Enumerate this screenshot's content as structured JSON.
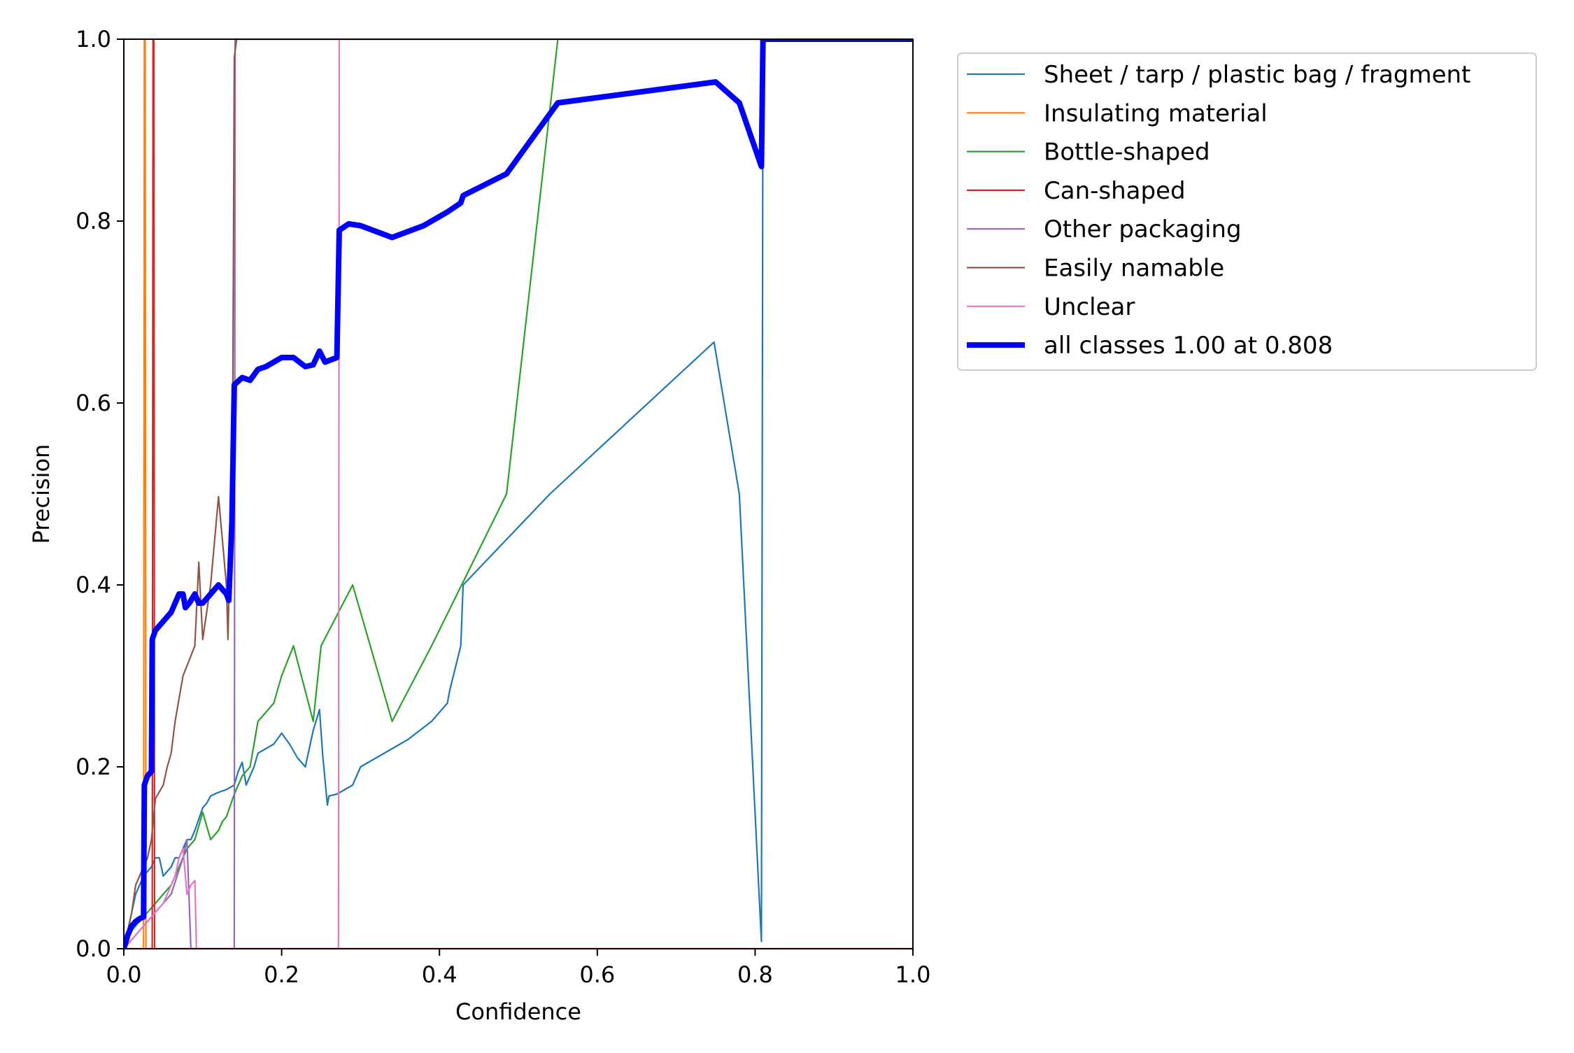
{
  "chart_data": {
    "type": "line",
    "title": "",
    "xlabel": "Confidence",
    "ylabel": "Precision",
    "xlim": [
      0,
      1
    ],
    "ylim": [
      0,
      1
    ],
    "xticks": [
      "0.0",
      "0.2",
      "0.4",
      "0.6",
      "0.8",
      "1.0"
    ],
    "yticks": [
      "0.0",
      "0.2",
      "0.4",
      "0.6",
      "0.8",
      "1.0"
    ],
    "grid": false,
    "legend_position": "outside-upper-right",
    "series": [
      {
        "name": "Sheet / tarp / plastic bag / fragment",
        "color": "#1f77b4",
        "bold": false,
        "points": [
          [
            0.0,
            0.0
          ],
          [
            0.005,
            0.02
          ],
          [
            0.01,
            0.04
          ],
          [
            0.015,
            0.06
          ],
          [
            0.02,
            0.07
          ],
          [
            0.025,
            0.08
          ],
          [
            0.03,
            0.085
          ],
          [
            0.035,
            0.09
          ],
          [
            0.04,
            0.1
          ],
          [
            0.045,
            0.1
          ],
          [
            0.05,
            0.08
          ],
          [
            0.055,
            0.085
          ],
          [
            0.06,
            0.09
          ],
          [
            0.065,
            0.1
          ],
          [
            0.07,
            0.1
          ],
          [
            0.075,
            0.11
          ],
          [
            0.08,
            0.12
          ],
          [
            0.085,
            0.12
          ],
          [
            0.09,
            0.13
          ],
          [
            0.1,
            0.155
          ],
          [
            0.105,
            0.16
          ],
          [
            0.11,
            0.168
          ],
          [
            0.12,
            0.172
          ],
          [
            0.13,
            0.175
          ],
          [
            0.14,
            0.18
          ],
          [
            0.145,
            0.195
          ],
          [
            0.15,
            0.205
          ],
          [
            0.155,
            0.18
          ],
          [
            0.16,
            0.19
          ],
          [
            0.165,
            0.2
          ],
          [
            0.17,
            0.215
          ],
          [
            0.18,
            0.22
          ],
          [
            0.19,
            0.225
          ],
          [
            0.2,
            0.237
          ],
          [
            0.21,
            0.225
          ],
          [
            0.22,
            0.21
          ],
          [
            0.23,
            0.2
          ],
          [
            0.24,
            0.24
          ],
          [
            0.248,
            0.263
          ],
          [
            0.252,
            0.213
          ],
          [
            0.258,
            0.158
          ],
          [
            0.26,
            0.168
          ],
          [
            0.27,
            0.17
          ],
          [
            0.29,
            0.18
          ],
          [
            0.3,
            0.2
          ],
          [
            0.33,
            0.215
          ],
          [
            0.36,
            0.23
          ],
          [
            0.39,
            0.25
          ],
          [
            0.41,
            0.27
          ],
          [
            0.413,
            0.284
          ],
          [
            0.427,
            0.333
          ],
          [
            0.43,
            0.4
          ],
          [
            0.54,
            0.5
          ],
          [
            0.748,
            0.667
          ],
          [
            0.78,
            0.5
          ],
          [
            0.808,
            0.008
          ],
          [
            0.81,
            1.0
          ],
          [
            1.0,
            1.0
          ]
        ]
      },
      {
        "name": "Insulating material",
        "color": "#ff7f0e",
        "bold": false,
        "points": [
          [
            0.0,
            0.0
          ],
          [
            0.025,
            0.0
          ],
          [
            0.026,
            1.0
          ],
          [
            0.027,
            1.0
          ],
          [
            0.028,
            0.0
          ],
          [
            1.0,
            0.0
          ]
        ]
      },
      {
        "name": "Bottle-shaped",
        "color": "#2ca02c",
        "bold": false,
        "points": [
          [
            0.0,
            0.0
          ],
          [
            0.01,
            0.02
          ],
          [
            0.02,
            0.03
          ],
          [
            0.03,
            0.04
          ],
          [
            0.04,
            0.05
          ],
          [
            0.05,
            0.06
          ],
          [
            0.06,
            0.07
          ],
          [
            0.07,
            0.09
          ],
          [
            0.08,
            0.11
          ],
          [
            0.09,
            0.12
          ],
          [
            0.1,
            0.15
          ],
          [
            0.11,
            0.12
          ],
          [
            0.12,
            0.13
          ],
          [
            0.125,
            0.14
          ],
          [
            0.13,
            0.145
          ],
          [
            0.14,
            0.17
          ],
          [
            0.15,
            0.19
          ],
          [
            0.16,
            0.2
          ],
          [
            0.17,
            0.25
          ],
          [
            0.18,
            0.26
          ],
          [
            0.19,
            0.27
          ],
          [
            0.2,
            0.3
          ],
          [
            0.215,
            0.333
          ],
          [
            0.225,
            0.3
          ],
          [
            0.24,
            0.25
          ],
          [
            0.25,
            0.333
          ],
          [
            0.29,
            0.4
          ],
          [
            0.34,
            0.25
          ],
          [
            0.39,
            0.333
          ],
          [
            0.485,
            0.5
          ],
          [
            0.55,
            1.0
          ],
          [
            1.0,
            1.0
          ]
        ]
      },
      {
        "name": "Can-shaped",
        "color": "#d62728",
        "bold": false,
        "points": [
          [
            0.0,
            0.0
          ],
          [
            0.036,
            0.0
          ],
          [
            0.037,
            1.0
          ],
          [
            0.038,
            1.0
          ],
          [
            0.039,
            0.0
          ],
          [
            1.0,
            0.0
          ]
        ]
      },
      {
        "name": "Other packaging",
        "color": "#9467bd",
        "bold": false,
        "points": [
          [
            0.0,
            0.0
          ],
          [
            0.02,
            0.02
          ],
          [
            0.04,
            0.04
          ],
          [
            0.06,
            0.06
          ],
          [
            0.075,
            0.1
          ],
          [
            0.08,
            0.12
          ],
          [
            0.085,
            0.0
          ],
          [
            0.14,
            0.0
          ],
          [
            0.141,
            1.0
          ],
          [
            1.0,
            1.0
          ]
        ]
      },
      {
        "name": "Easily namable",
        "color": "#8c564b",
        "bold": false,
        "points": [
          [
            0.0,
            0.0
          ],
          [
            0.01,
            0.04
          ],
          [
            0.015,
            0.07
          ],
          [
            0.02,
            0.08
          ],
          [
            0.03,
            0.1
          ],
          [
            0.035,
            0.12
          ],
          [
            0.04,
            0.165
          ],
          [
            0.05,
            0.18
          ],
          [
            0.055,
            0.2
          ],
          [
            0.06,
            0.215
          ],
          [
            0.065,
            0.25
          ],
          [
            0.075,
            0.3
          ],
          [
            0.09,
            0.333
          ],
          [
            0.095,
            0.425
          ],
          [
            0.1,
            0.34
          ],
          [
            0.11,
            0.4
          ],
          [
            0.12,
            0.497
          ],
          [
            0.13,
            0.4
          ],
          [
            0.132,
            0.34
          ],
          [
            0.138,
            0.58
          ],
          [
            0.14,
            0.98
          ],
          [
            0.143,
            1.0
          ],
          [
            1.0,
            1.0
          ]
        ]
      },
      {
        "name": "Unclear",
        "color": "#e377c2",
        "bold": false,
        "points": [
          [
            0.0,
            0.0
          ],
          [
            0.02,
            0.02
          ],
          [
            0.03,
            0.03
          ],
          [
            0.04,
            0.04
          ],
          [
            0.05,
            0.05
          ],
          [
            0.06,
            0.07
          ],
          [
            0.065,
            0.08
          ],
          [
            0.07,
            0.1
          ],
          [
            0.075,
            0.11
          ],
          [
            0.08,
            0.06
          ],
          [
            0.085,
            0.07
          ],
          [
            0.09,
            0.075
          ],
          [
            0.092,
            0.0
          ],
          [
            0.272,
            0.0
          ],
          [
            0.273,
            1.0
          ],
          [
            1.0,
            1.0
          ]
        ]
      },
      {
        "name": "all classes 1.00 at 0.808",
        "color": "#0000ff",
        "bold": true,
        "points": [
          [
            0.0,
            0.0
          ],
          [
            0.005,
            0.015
          ],
          [
            0.01,
            0.025
          ],
          [
            0.015,
            0.03
          ],
          [
            0.02,
            0.033
          ],
          [
            0.025,
            0.035
          ],
          [
            0.026,
            0.18
          ],
          [
            0.03,
            0.19
          ],
          [
            0.035,
            0.195
          ],
          [
            0.036,
            0.34
          ],
          [
            0.04,
            0.35
          ],
          [
            0.045,
            0.355
          ],
          [
            0.05,
            0.36
          ],
          [
            0.06,
            0.37
          ],
          [
            0.065,
            0.38
          ],
          [
            0.07,
            0.39
          ],
          [
            0.075,
            0.39
          ],
          [
            0.078,
            0.375
          ],
          [
            0.083,
            0.38
          ],
          [
            0.09,
            0.39
          ],
          [
            0.095,
            0.38
          ],
          [
            0.1,
            0.38
          ],
          [
            0.11,
            0.39
          ],
          [
            0.12,
            0.4
          ],
          [
            0.13,
            0.39
          ],
          [
            0.133,
            0.383
          ],
          [
            0.137,
            0.47
          ],
          [
            0.14,
            0.62
          ],
          [
            0.15,
            0.628
          ],
          [
            0.16,
            0.625
          ],
          [
            0.17,
            0.637
          ],
          [
            0.18,
            0.64
          ],
          [
            0.19,
            0.645
          ],
          [
            0.2,
            0.65
          ],
          [
            0.215,
            0.65
          ],
          [
            0.23,
            0.64
          ],
          [
            0.24,
            0.642
          ],
          [
            0.248,
            0.657
          ],
          [
            0.255,
            0.645
          ],
          [
            0.27,
            0.65
          ],
          [
            0.273,
            0.79
          ],
          [
            0.285,
            0.797
          ],
          [
            0.3,
            0.795
          ],
          [
            0.34,
            0.782
          ],
          [
            0.38,
            0.795
          ],
          [
            0.41,
            0.81
          ],
          [
            0.427,
            0.82
          ],
          [
            0.43,
            0.828
          ],
          [
            0.485,
            0.852
          ],
          [
            0.55,
            0.93
          ],
          [
            0.75,
            0.953
          ],
          [
            0.78,
            0.93
          ],
          [
            0.808,
            0.86
          ],
          [
            0.81,
            1.0
          ],
          [
            1.0,
            1.0
          ]
        ]
      }
    ]
  }
}
